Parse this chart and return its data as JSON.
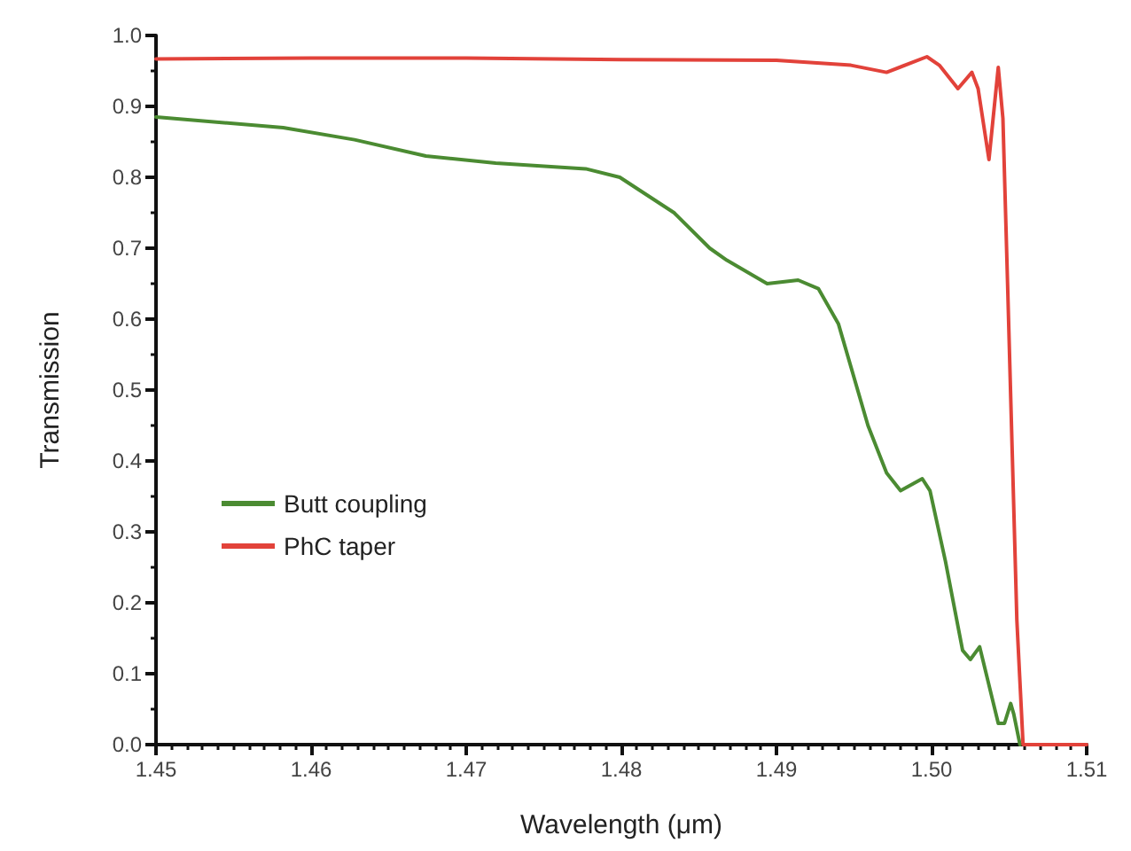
{
  "chart_data": {
    "type": "line",
    "xlabel": "Wavelength (μm)",
    "ylabel": "Transmission",
    "xlim": [
      1.45,
      1.51
    ],
    "xticks": [
      1.45,
      1.46,
      1.47,
      1.48,
      1.49,
      {
        "value": 1.5,
        "label": "1.50"
      },
      1.51
    ],
    "ylim": [
      0,
      1
    ],
    "yticks": [
      {
        "value": 0,
        "label": "0.0"
      },
      0.1,
      0.2,
      0.3,
      0.4,
      0.5,
      0.6,
      0.7,
      0.8,
      0.9,
      {
        "value": 1,
        "label": "1.0"
      }
    ],
    "grid": false,
    "legend": "left",
    "marker": "none",
    "line_style": "solid",
    "series": [
      {
        "name": "Butt coupling",
        "color": "#4b8b32",
        "x": [
          1.45,
          1.4582,
          1.4628,
          1.4674,
          1.4719,
          1.4777,
          1.4799,
          1.4834,
          1.4857,
          1.4868,
          1.4894,
          1.4914,
          1.4927,
          1.494,
          1.4959,
          1.4971,
          1.498,
          1.4994,
          1.4999,
          1.5009,
          1.502,
          1.5025,
          1.5031,
          1.5036,
          1.5043,
          1.5047,
          1.5051,
          1.5053,
          1.5057
        ],
        "values": [
          0.885,
          0.87,
          0.853,
          0.83,
          0.82,
          0.812,
          0.8,
          0.75,
          0.7,
          0.683,
          0.65,
          0.655,
          0.643,
          0.593,
          0.45,
          0.383,
          0.358,
          0.375,
          0.358,
          0.258,
          0.133,
          0.12,
          0.138,
          0.093,
          0.03,
          0.03,
          0.058,
          0.043,
          0.0
        ]
      },
      {
        "name": "PhC taper",
        "color": "#e2423a",
        "x": [
          1.45,
          1.46,
          1.47,
          1.48,
          1.49,
          1.4948,
          1.4971,
          1.4997,
          1.5005,
          1.5017,
          1.5026,
          1.503,
          1.5037,
          1.5043,
          1.5046,
          1.5049,
          1.5055,
          1.5059,
          1.51
        ],
        "values": [
          0.967,
          0.968,
          0.968,
          0.966,
          0.965,
          0.958,
          0.948,
          0.97,
          0.958,
          0.925,
          0.948,
          0.925,
          0.825,
          0.955,
          0.883,
          0.65,
          0.175,
          0.0,
          0.0
        ]
      }
    ]
  }
}
